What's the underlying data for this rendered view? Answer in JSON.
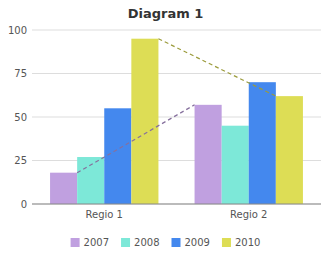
{
  "chart_data": {
    "type": "bar",
    "title": "Diagram 1",
    "categories": [
      "Regio 1",
      "Regio 2"
    ],
    "series": [
      {
        "name": "2007",
        "color": "#c0a0e0",
        "values": [
          18,
          57
        ],
        "line_style": "dashed"
      },
      {
        "name": "2008",
        "color": "#7de8d8",
        "values": [
          27,
          45
        ]
      },
      {
        "name": "2009",
        "color": "#4488ee",
        "values": [
          55,
          70
        ]
      },
      {
        "name": "2010",
        "color": "#dddd55",
        "values": [
          95,
          62
        ],
        "line_style": "dashed"
      }
    ],
    "ylim": [
      0,
      100
    ],
    "yticks": [
      0,
      25,
      50,
      75,
      100
    ],
    "grid": true,
    "legend": "bottom"
  }
}
